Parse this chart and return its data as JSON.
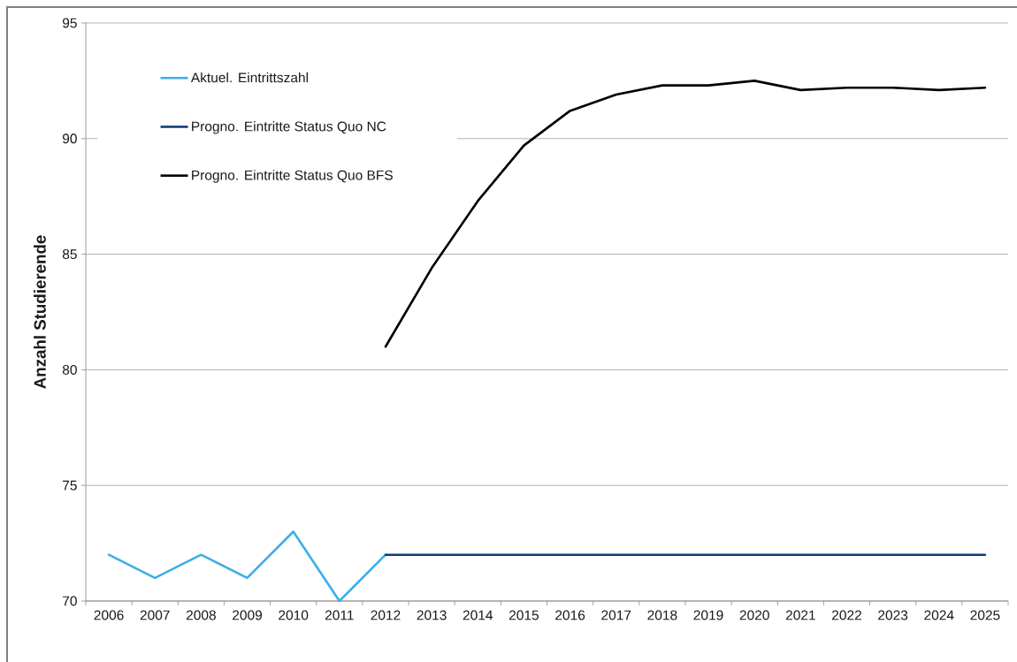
{
  "chart_data": {
    "type": "line",
    "ylabel": "Anzahl Studierende",
    "categories": [
      "2006",
      "2007",
      "2008",
      "2009",
      "2010",
      "2011",
      "2012",
      "2013",
      "2014",
      "2015",
      "2016",
      "2017",
      "2018",
      "2019",
      "2020",
      "2021",
      "2022",
      "2023",
      "2024",
      "2025"
    ],
    "series": [
      {
        "name": "Aktuel. Eintrittszahl",
        "color": "#3daee9",
        "values": [
          72,
          71,
          72,
          71,
          73,
          70,
          72,
          null,
          null,
          null,
          null,
          null,
          null,
          null,
          null,
          null,
          null,
          null,
          null,
          null
        ]
      },
      {
        "name": "Progno. Eintritte Status Quo NC",
        "color": "#0d3a7a",
        "values": [
          null,
          null,
          null,
          null,
          null,
          null,
          72,
          72,
          72,
          72,
          72,
          72,
          72,
          72,
          72,
          72,
          72,
          72,
          72,
          72
        ]
      },
      {
        "name": "Progno. Eintritte Status Quo BFS",
        "color": "#000000",
        "values": [
          null,
          null,
          null,
          null,
          null,
          null,
          81.0,
          84.4,
          87.3,
          89.7,
          91.2,
          91.9,
          92.3,
          92.3,
          92.5,
          92.1,
          92.2,
          92.2,
          92.1,
          92.2
        ]
      }
    ],
    "ylim": [
      70,
      95
    ],
    "yticks": [
      70,
      75,
      80,
      85,
      90,
      95
    ],
    "grid": "y",
    "legend": "top left",
    "marker": "none",
    "line_style": "solid"
  }
}
